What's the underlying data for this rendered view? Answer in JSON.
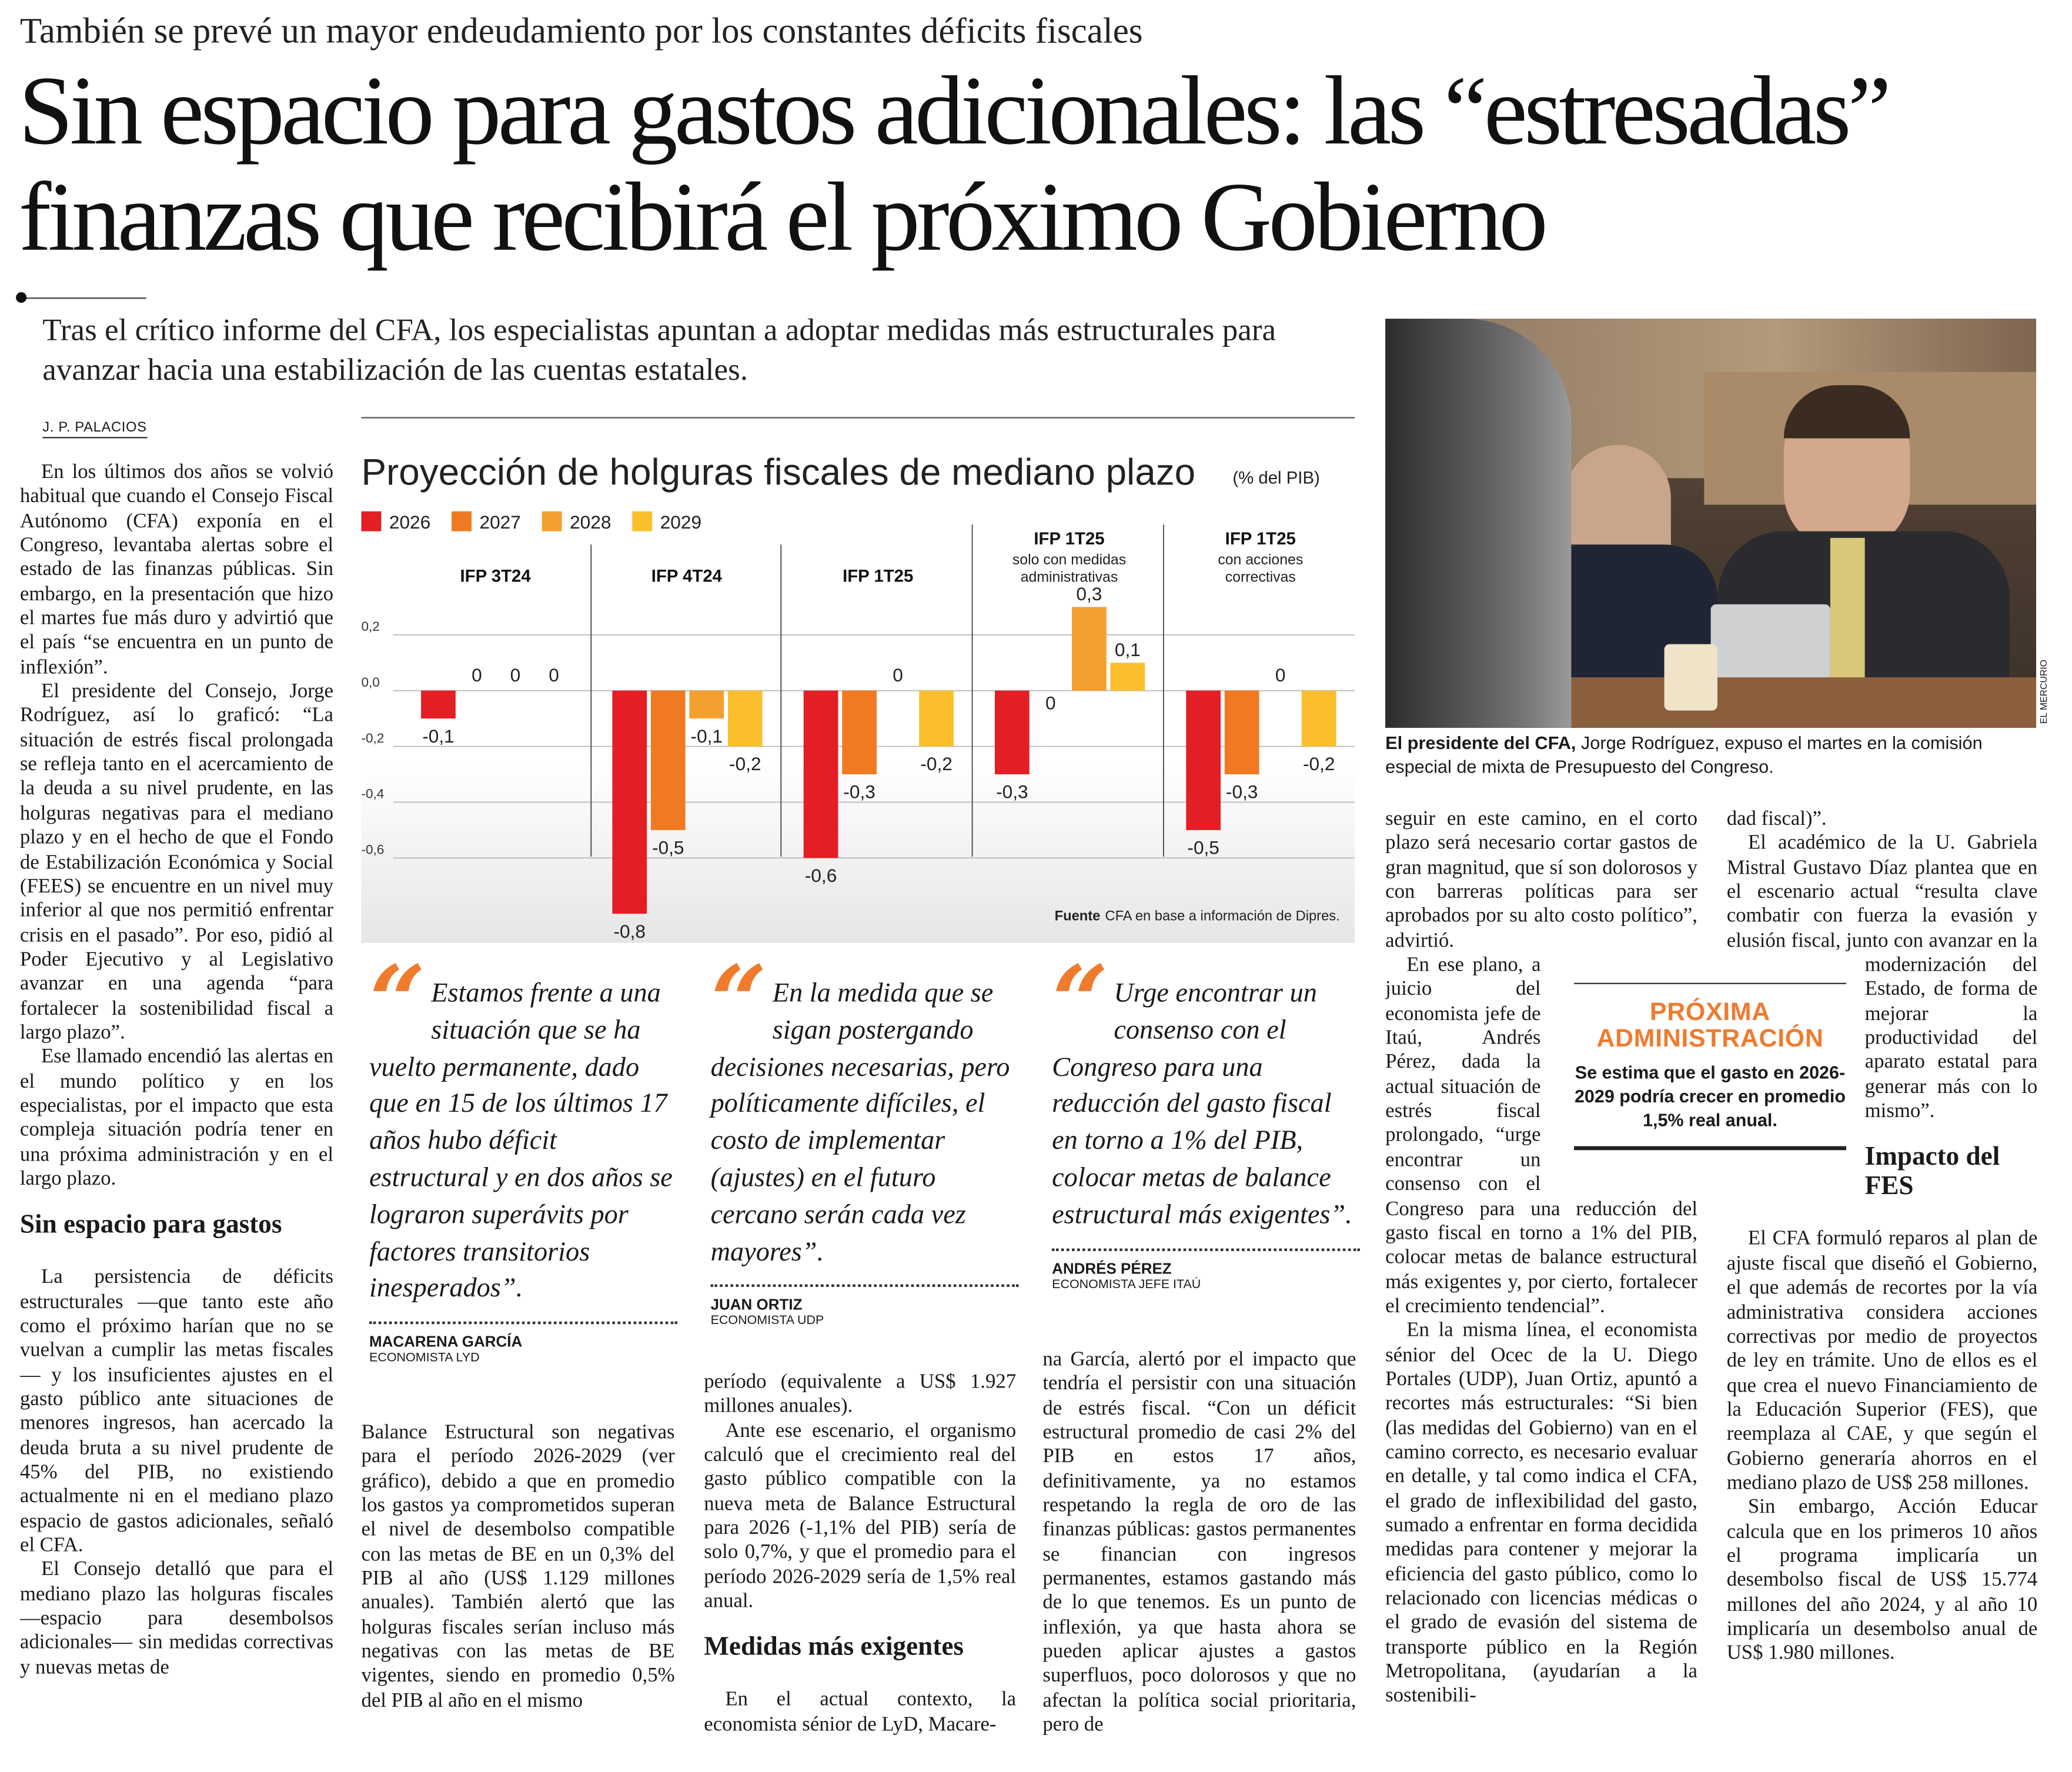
{
  "kicker": "También se prevé un mayor endeudamiento por los constantes déficits fiscales",
  "headline": {
    "line1": "Sin espacio para gastos adicionales: las “estresadas”",
    "line2": "finanzas que recibirá el próximo Gobierno"
  },
  "deck": "Tras el crítico informe del CFA, los especialistas apuntan a adoptar medidas más estructurales para avanzar hacia una estabilización de las cuentas estatales.",
  "byline": "J. P. PALACIOS",
  "col1": {
    "p1": "En los últimos dos años se volvió habitual que cuando el Consejo Fiscal Autónomo (CFA) exponía en el Congreso, levantaba alertas sobre el estado de las finanzas públicas. Sin embargo, en la presentación que hizo el martes fue más duro y advirtió que el país “se encuentra en un punto de inflexión”.",
    "p2": "El presidente del Consejo, Jorge Rodríguez, así lo graficó: “La situación de estrés fiscal prolongada se refleja tanto en el acercamiento de la deuda a su nivel prudente, en las holguras negativas para el mediano plazo y en el hecho de que el Fondo de Estabilización Económica y Social (FEES) se encuentre en un nivel muy inferior al que nos permitió enfrentar crisis en el pasado”. Por eso, pidió al Poder Ejecutivo y al Legislativo avanzar en una agenda “para fortalecer la sostenibilidad fiscal a largo plazo”.",
    "p3": "Ese llamado encendió las alertas en el mundo político y en los especialistas, por el impacto que esta compleja situación podría tener en una próxima administración y en el largo plazo.",
    "subhead": "Sin espacio para gastos",
    "p4": "La persistencia de déficits estructurales —que tanto este año como el próximo harían que no se vuelvan a cumplir las metas fiscales— y los insuficientes ajustes en el gasto público ante situaciones de menores ingresos, han acercado la deuda bruta a su nivel prudente de 45% del PIB, no existiendo actualmente ni en el mediano plazo espacio de gastos adicionales, señaló el CFA.",
    "p5": "El Consejo detalló que para el mediano plazo las holguras fiscales —espacio para desembolsos adicionales— sin medidas correctivas y nuevas metas de"
  },
  "col2": {
    "p1": "Balance Estructural son negativas para el período 2026-2029 (ver gráfico), debido a que en promedio los gastos ya comprometidos superan el nivel de desembolso compatible con las metas de BE en un 0,3% del PIB al año (US$ 1.129 millones anuales). También alertó que las holguras fiscales serían incluso más negativas con las metas de BE vigentes, siendo en promedio 0,5% del PIB al año en el mismo"
  },
  "col3": {
    "p1": "período (equivalente a US$ 1.927 millones anuales).",
    "p2": "Ante ese escenario, el organismo calculó que el crecimiento real del gasto público compatible con la nueva meta de Balance Estructural para 2026 (-1,1% del PIB) sería de solo 0,7%, y que el promedio para el período 2026-2029 sería de 1,5% real anual.",
    "subhead": "Medidas más exigentes",
    "p3": "En el actual contexto, la economista sénior de LyD, Macare-"
  },
  "col4": {
    "p1": "na García, alertó por el impacto que tendría el persistir con una situación de estrés fiscal. “Con un déficit estructural promedio de casi 2% del PIB en estos 17 años, definitivamente, ya no estamos respetando la regla de oro de las finanzas públicas: gastos permanentes se financian con ingresos permanentes, estamos gastando más de lo que tenemos. Es un punto de inflexión, ya que hasta ahora se pueden aplicar ajustes a gastos superfluos, poco dolorosos y que no afectan la política social prioritaria, pero de"
  },
  "col5": {
    "p1": "seguir en este camino, en el corto plazo será necesario cortar gastos de gran magnitud, que sí son dolorosos y con barreras políticas para ser aprobados por su alto costo político”, advirtió.",
    "p2": "En ese plano, a juicio del economista jefe de Itaú, Andrés Pérez, dada la actual situación de estrés fiscal prolongado, “urge encontrar un consenso con el Congreso para una reducción del gasto fiscal en torno a 1% del PIB, colocar metas de balance estructural más exigentes y, por cierto, fortalecer el crecimiento tendencial”.",
    "p3": "En la misma línea, el economista sénior del Ocec de la U. Diego Portales (UDP), Juan Ortiz, apuntó a recortes más estructurales: “Si bien (las medidas del Gobierno) van en el camino correcto, es necesario evaluar en detalle, y tal como indica el CFA, el grado de inflexibilidad del gasto, sumado a enfrentar en forma decidida medidas para contener y mejorar la eficiencia del gasto público, como lo relacionado con licencias médicas o el grado de evasión del sistema de transporte público en la Región Metropolitana, (ayudarían a la sostenibili-"
  },
  "col6": {
    "p1": "dad fiscal)”.",
    "p2": "El académico de la U. Gabriela Mistral Gustavo Díaz plantea que en el escenario actual “resulta clave combatir con fuerza la evasión y elusión fiscal, junto con avanzar en la modernización del Estado, de forma de mejorar la productividad del aparato estatal para generar más con lo mismo”.",
    "subhead": "Impacto del FES",
    "p3": "El CFA formuló reparos al plan de ajuste fiscal que diseñó el Gobierno, el que además de recortes por la vía administrativa considera acciones correctivas por medio de proyectos de ley en trámite. Uno de ellos es el que crea el nuevo Financiamiento de la Educación Superior (FES), que reemplaza al CAE, y que según el Gobierno generaría ahorros en el mediano plazo de US$ 258 millones.",
    "p4": "Sin embargo, Acción Educar calcula que en los primeros 10 años el programa implicaría un desembolso fiscal de US$ 15.774 millones del año 2024, y al año 10 implicaría un desembolso anual de US$ 1.980 millones."
  },
  "quotes": [
    {
      "text": "Estamos frente a una situación que se ha vuelto permanente, dado que en 15 de los últimos 17 años hubo déficit estructural y en dos años se lograron superávits por factores transitorios inesperados”.",
      "name": "MACARENA GARCÍA",
      "role": "ECONOMISTA LYD"
    },
    {
      "text": "En la medida que se sigan postergando decisiones necesarias, pero políticamente difíciles, el costo de implementar (ajustes) en el futuro cercano serán cada vez mayores”.",
      "name": "JUAN ORTIZ",
      "role": "ECONOMISTA UDP"
    },
    {
      "text": "Urge encontrar un consenso con el Congreso para una reducción del gasto fiscal en torno a 1% del PIB, colocar metas de balance estructural más exigentes”.",
      "name": "ANDRÉS PÉREZ",
      "role": "ECONOMISTA JEFE ITAÚ"
    }
  ],
  "photo": {
    "caption_bold": "El presidente del CFA,",
    "caption": " Jorge Rodríguez, expuso el martes en la comisión especial de mixta de Presupuesto del Congreso.",
    "credit": "EL MERCURIO"
  },
  "box": {
    "title1": "PRÓXIMA",
    "title2": "ADMINISTRACIÓN",
    "body": "Se estima que el gasto en 2026-2029 podría crecer en promedio 1,5% real anual."
  },
  "colors": {
    "accent": "#ef7b2f",
    "s2026": "#e31e24",
    "s2027": "#f07a22",
    "s2028": "#f4a030",
    "s2029": "#fbbf2e"
  },
  "chart_data": {
    "type": "bar",
    "title": "Proyección de holguras fiscales de mediano plazo",
    "unit": "(% del PIB)",
    "legend": [
      "2026",
      "2027",
      "2028",
      "2029"
    ],
    "yticks": [
      "0,2",
      "0,0",
      "-0,2",
      "-0,4",
      "-0,6"
    ],
    "ytick_values": [
      0.2,
      0,
      -0.2,
      -0.4,
      -0.6
    ],
    "ylim": [
      -0.85,
      0.35
    ],
    "groups": [
      {
        "title": "IFP 3T24",
        "subtitle": "",
        "values": [
          -0.1,
          0,
          0,
          0
        ]
      },
      {
        "title": "IFP 4T24",
        "subtitle": "",
        "values": [
          -0.8,
          -0.5,
          -0.1,
          -0.2
        ]
      },
      {
        "title": "IFP 1T25",
        "subtitle": "",
        "values": [
          -0.6,
          -0.3,
          0,
          -0.2
        ]
      },
      {
        "title": "IFP 1T25",
        "subtitle": "solo con medidas|administrativas",
        "values": [
          -0.3,
          0,
          0.3,
          0.1
        ]
      },
      {
        "title": "IFP 1T25",
        "subtitle": "con acciones|correctivas",
        "values": [
          -0.5,
          -0.3,
          0,
          -0.2
        ]
      }
    ],
    "source_label": "Fuente",
    "source": "CFA en base a información de Dipres."
  }
}
